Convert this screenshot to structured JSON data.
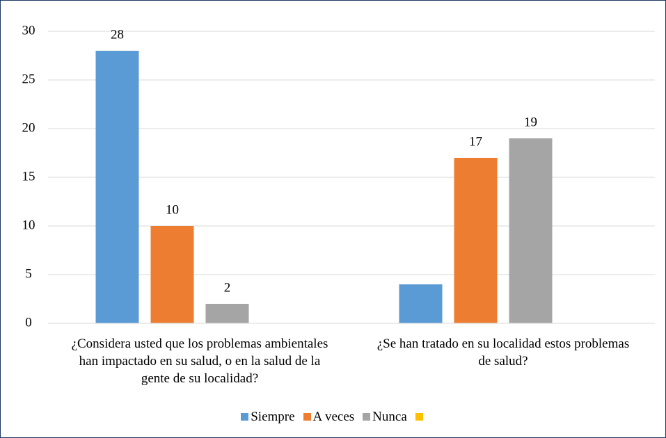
{
  "chart_data": {
    "type": "bar",
    "categories": [
      "¿Considera usted que los problemas ambientales han impactado en su salud, o en la salud de la gente de su localidad?",
      "¿Se han tratado en su localidad estos problemas de salud?"
    ],
    "series": [
      {
        "name": "Siempre",
        "color": "#5b9bd5",
        "values": [
          28,
          4
        ],
        "value_labels": [
          28,
          null
        ]
      },
      {
        "name": "A veces",
        "color": "#ed7d31",
        "values": [
          10,
          17
        ],
        "value_labels": [
          10,
          17
        ]
      },
      {
        "name": "Nunca",
        "color": "#a5a5a5",
        "values": [
          2,
          19
        ],
        "value_labels": [
          2,
          19
        ]
      },
      {
        "name": null,
        "color": "#ffc000",
        "values": [
          null,
          null
        ]
      }
    ],
    "ylim": [
      0,
      30
    ],
    "yticks": [
      0,
      5,
      10,
      15,
      20,
      25,
      30
    ],
    "grid": true,
    "legend": "bottom"
  }
}
